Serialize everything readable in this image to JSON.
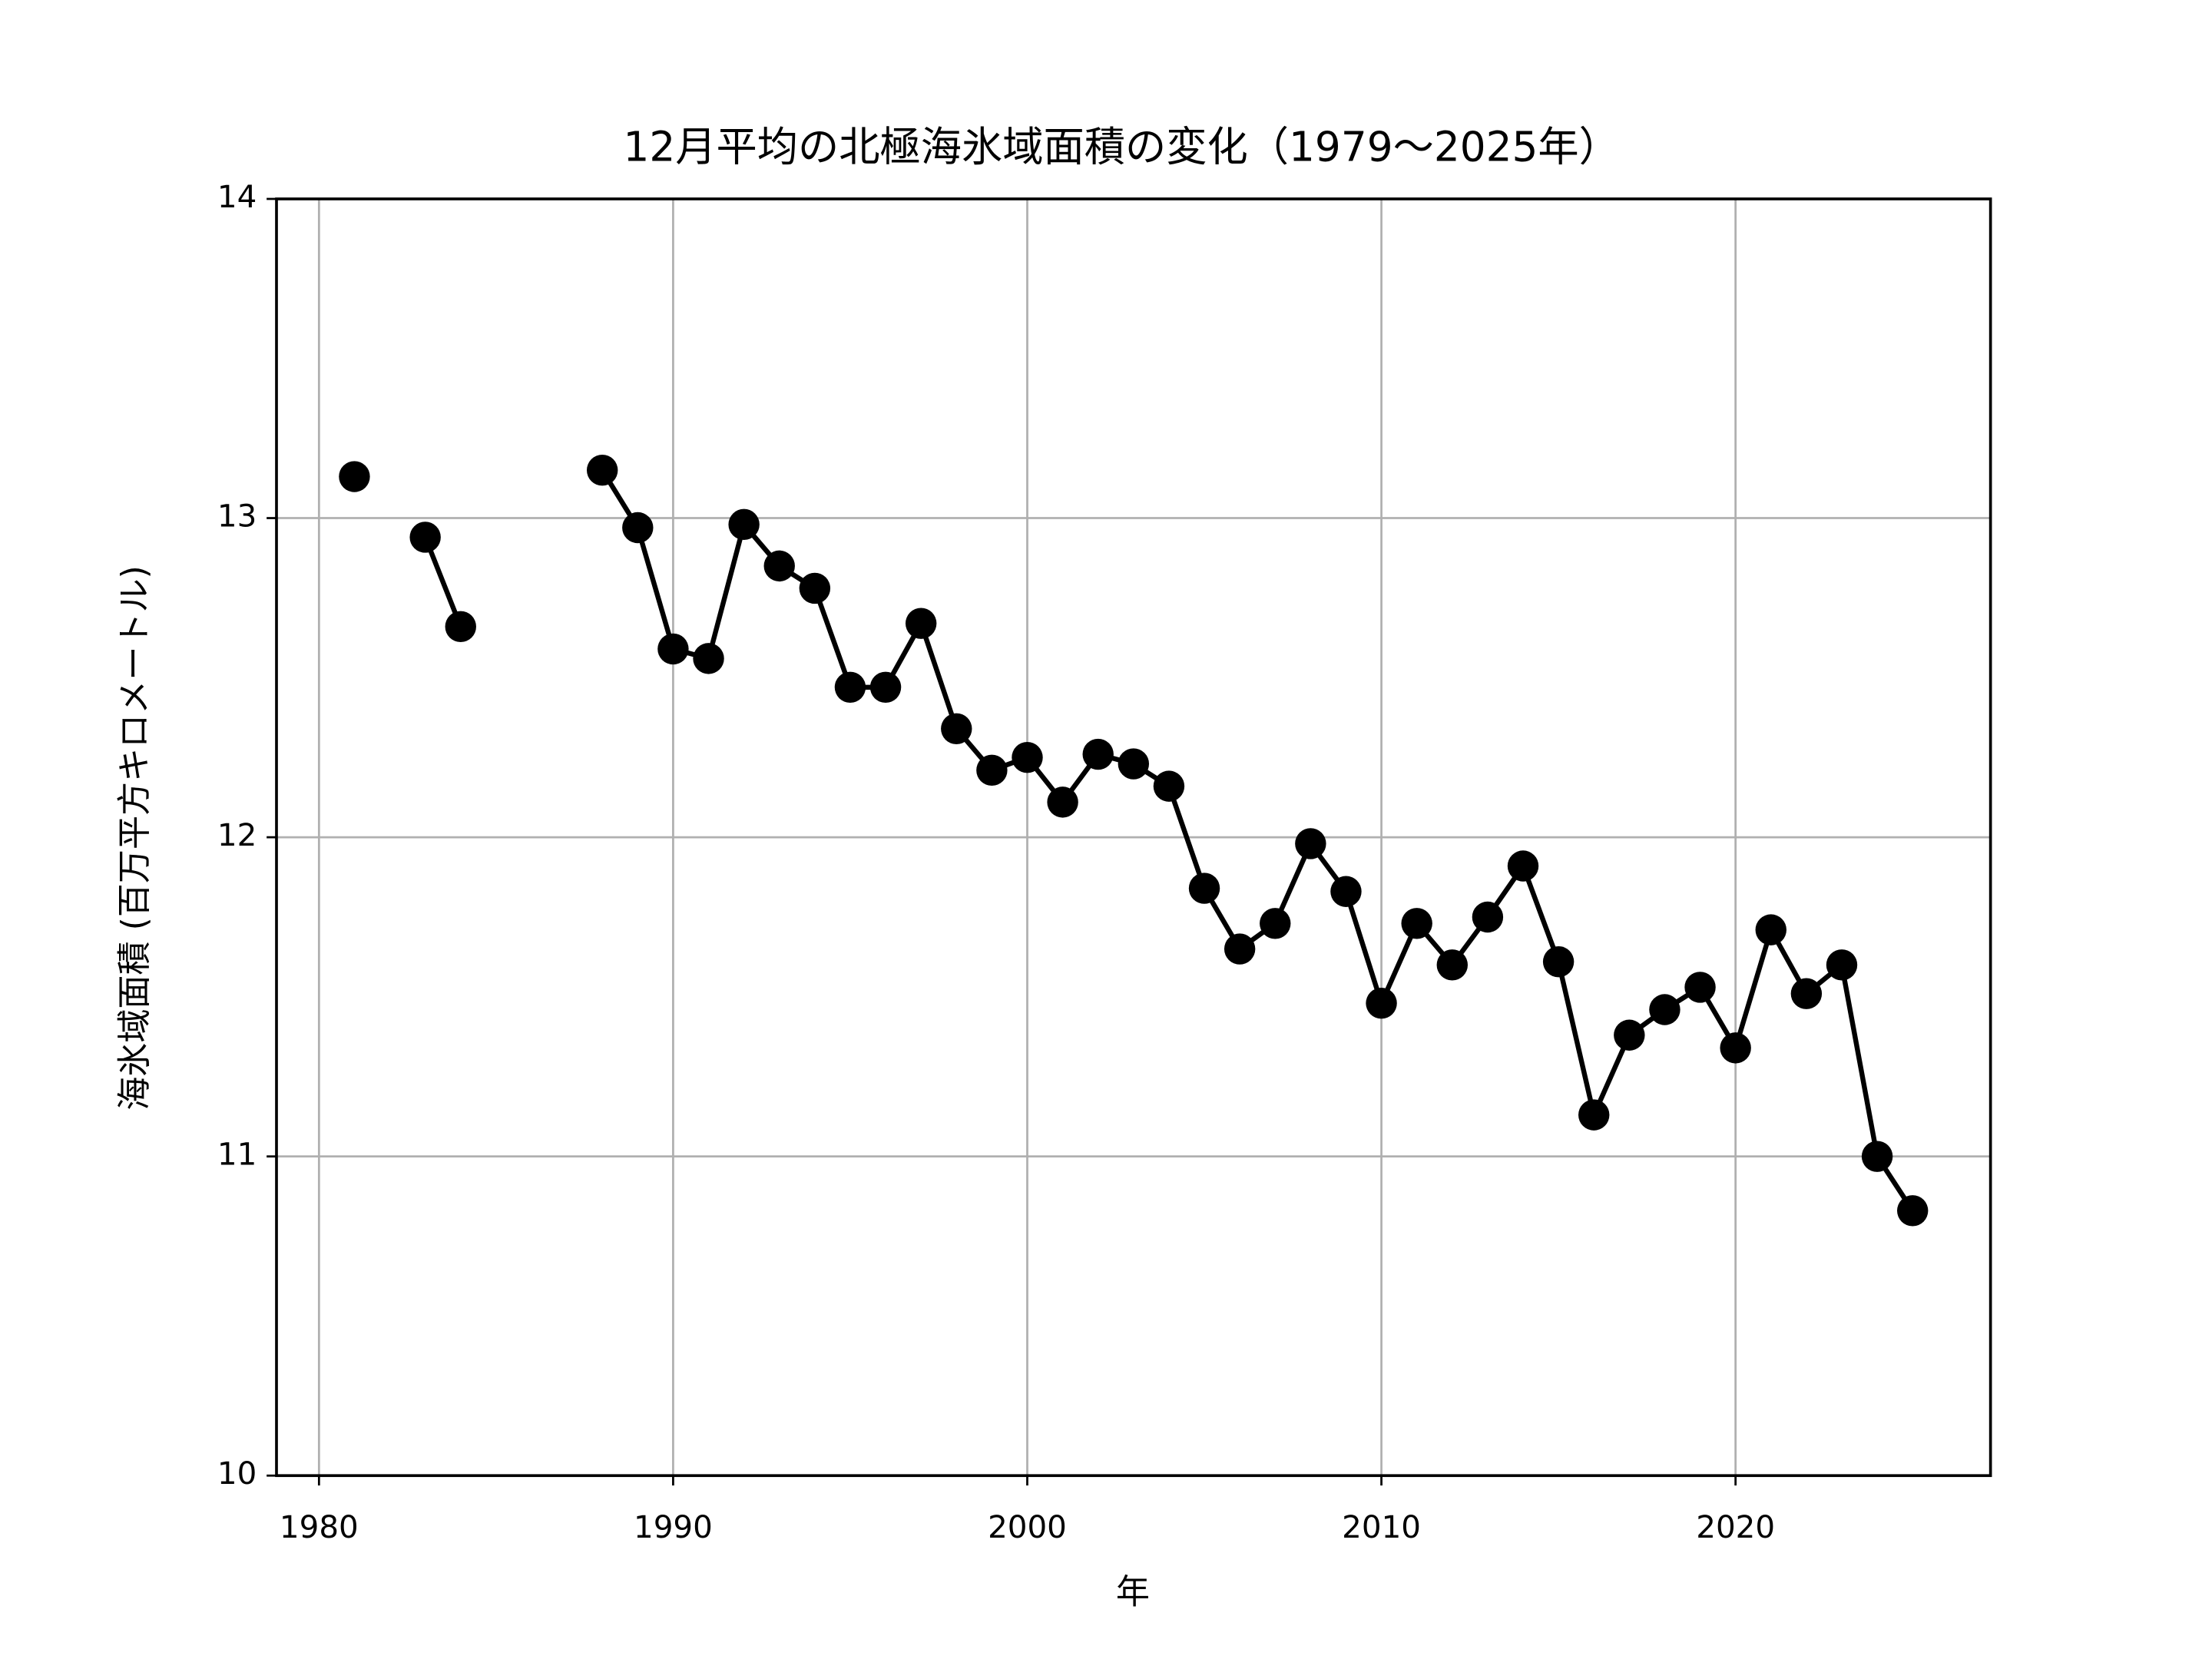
{
  "chart_data": {
    "type": "line",
    "title": "12月平均の北極海氷域面積の変化（1979〜2025年）",
    "xlabel": "年",
    "ylabel": "海氷域面積 (百万平方キロメートル)",
    "x": [
      1981,
      1982,
      1983,
      1984,
      1985,
      1986,
      1987,
      1988,
      1989,
      1990,
      1991,
      1992,
      1993,
      1994,
      1995,
      1996,
      1997,
      1998,
      1999,
      2000,
      2001,
      2002,
      2003,
      2004,
      2005,
      2006,
      2007,
      2008,
      2009,
      2010,
      2011,
      2012,
      2013,
      2014,
      2015,
      2016,
      2017,
      2018,
      2019,
      2020,
      2021,
      2022,
      2023,
      2024,
      2025
    ],
    "series": [
      {
        "color": "#000000",
        "marker": "o",
        "values": [
          13.13,
          null,
          12.94,
          12.66,
          null,
          null,
          null,
          13.15,
          12.97,
          12.59,
          12.56,
          12.98,
          12.85,
          12.78,
          12.47,
          12.47,
          12.67,
          12.34,
          12.21,
          12.25,
          12.11,
          12.26,
          12.23,
          12.16,
          11.84,
          11.65,
          11.73,
          11.98,
          11.83,
          11.48,
          11.73,
          11.6,
          11.75,
          11.91,
          11.61,
          11.13,
          11.38,
          11.46,
          11.53,
          11.34,
          11.71,
          11.51,
          11.6,
          11.0,
          10.83
        ]
      }
    ],
    "xlim": [
      1978.8,
      2027.2
    ],
    "ylim": [
      10,
      14
    ],
    "xticks": [
      1980,
      1990,
      2000,
      2010,
      2020
    ],
    "yticks": [
      10,
      11,
      12,
      13,
      14
    ],
    "grid": true
  }
}
